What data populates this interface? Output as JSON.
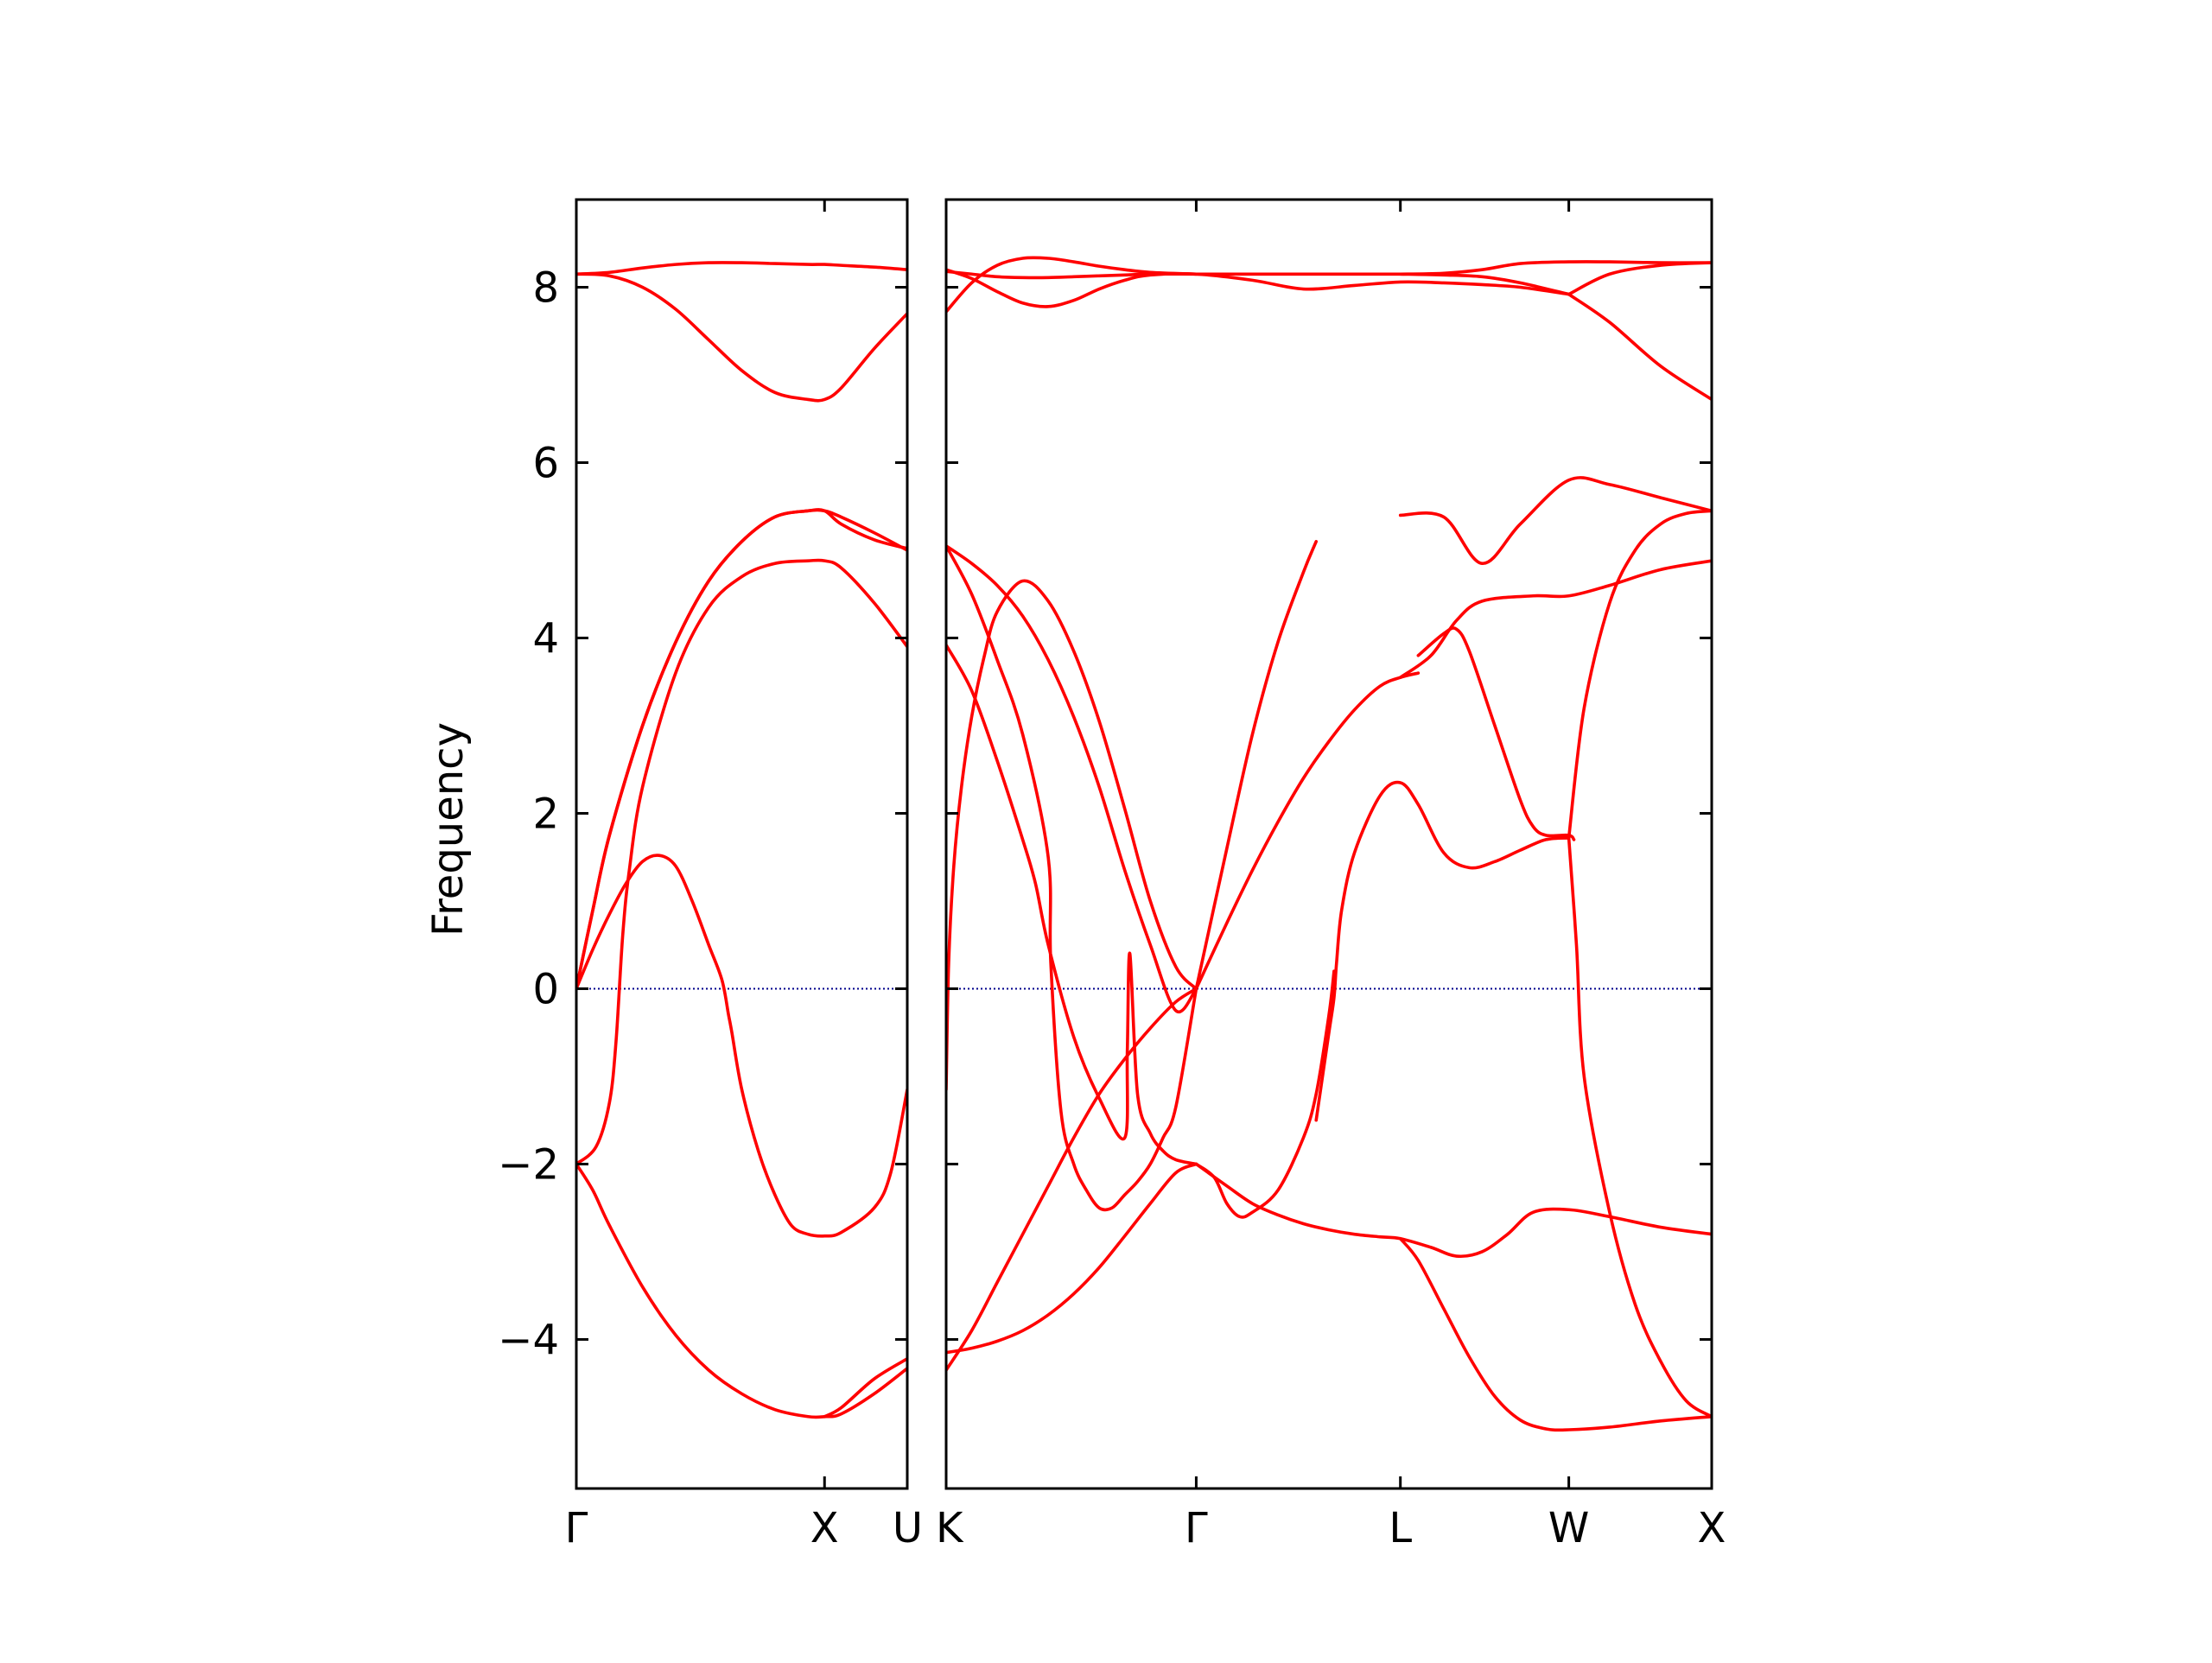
{
  "chart_data": {
    "type": "line",
    "title": "",
    "ylabel": "Frequency",
    "ylim": [
      -5.7,
      9.0
    ],
    "yticks": [
      -4,
      -2,
      0,
      2,
      4,
      6,
      8
    ],
    "ytick_labels": [
      "−4",
      "−2",
      "0",
      "2",
      "4",
      "6",
      "8"
    ],
    "grid": false,
    "band_color": "#ff0000",
    "zero_line_color": "#00008b",
    "panels": [
      {
        "xlim": [
          0.0,
          1.0
        ],
        "xticks": [
          0.0,
          0.75,
          1.0
        ],
        "xtick_labels": [
          "Γ",
          "X",
          "U"
        ],
        "series": [
          {
            "x": [
              0,
              0.1,
              0.2,
              0.3,
              0.4,
              0.5,
              0.6,
              0.7,
              0.75,
              0.8,
              0.9,
              1.0
            ],
            "y": [
              8.15,
              8.17,
              8.22,
              8.26,
              8.28,
              8.28,
              8.27,
              8.26,
              8.26,
              8.25,
              8.23,
              8.2
            ]
          },
          {
            "x": [
              0,
              0.1,
              0.2,
              0.3,
              0.4,
              0.5,
              0.6,
              0.7,
              0.75,
              0.8,
              0.9,
              1.0
            ],
            "y": [
              8.15,
              8.13,
              8.0,
              7.75,
              7.4,
              7.05,
              6.8,
              6.72,
              6.72,
              6.85,
              7.3,
              7.7
            ]
          },
          {
            "x": [
              0,
              0.05,
              0.1,
              0.2,
              0.3,
              0.4,
              0.5,
              0.6,
              0.7,
              0.75,
              0.8,
              0.9,
              1.0
            ],
            "y": [
              0,
              0.9,
              1.75,
              3.0,
              3.95,
              4.65,
              5.1,
              5.38,
              5.45,
              5.45,
              5.38,
              5.2,
              5.0
            ]
          },
          {
            "x": [
              0,
              0.05,
              0.1,
              0.2,
              0.3,
              0.4,
              0.5,
              0.6,
              0.7,
              0.75,
              0.8,
              0.9,
              1.0
            ],
            "y": [
              0,
              0.9,
              1.75,
              3.0,
              3.95,
              4.65,
              5.1,
              5.38,
              5.45,
              5.45,
              5.3,
              5.12,
              5.02
            ]
          },
          {
            "x": [
              0,
              0.06,
              0.1,
              0.12,
              0.14,
              0.16,
              0.2,
              0.3,
              0.4,
              0.5,
              0.6,
              0.7,
              0.75,
              0.8,
              0.9,
              1.0
            ],
            "y": [
              -2.0,
              -1.8,
              -1.3,
              -0.6,
              0.6,
              1.35,
              2.3,
              3.6,
              4.35,
              4.7,
              4.85,
              4.88,
              4.88,
              4.8,
              4.4,
              3.9
            ]
          },
          {
            "x": [
              0,
              0.05,
              0.1,
              0.15,
              0.2,
              0.25,
              0.3,
              0.35,
              0.4,
              0.44,
              0.46,
              0.47,
              0.5,
              0.55,
              0.6,
              0.65,
              0.7,
              0.75,
              0.8,
              0.9,
              0.95,
              1.0
            ],
            "y": [
              0,
              0.45,
              0.85,
              1.2,
              1.45,
              1.52,
              1.4,
              1.0,
              0.5,
              0.1,
              -0.3,
              -0.5,
              -1.15,
              -1.85,
              -2.35,
              -2.7,
              -2.8,
              -2.82,
              -2.78,
              -2.5,
              -2.1,
              -1.15
            ]
          },
          {
            "x": [
              0,
              0.05,
              0.1,
              0.2,
              0.3,
              0.4,
              0.5,
              0.6,
              0.7,
              0.75,
              0.8,
              0.9,
              1.0
            ],
            "y": [
              -2.0,
              -2.3,
              -2.7,
              -3.4,
              -3.95,
              -4.35,
              -4.62,
              -4.8,
              -4.88,
              -4.88,
              -4.85,
              -4.62,
              -4.33
            ]
          },
          {
            "x": [
              0.75,
              0.8,
              0.9,
              1.0
            ],
            "y": [
              -4.88,
              -4.78,
              -4.45,
              -4.22
            ]
          }
        ]
      },
      {
        "xlim": [
          0.0,
          3.0
        ],
        "xticks": [
          0.0,
          0.98,
          1.78,
          2.44,
          3.0
        ],
        "xtick_labels": [
          "K",
          "Γ",
          "L",
          "W",
          "X"
        ],
        "series": [
          {
            "x": [
              0,
              0.1,
              0.2,
              0.3,
              0.4,
              0.5,
              0.6,
              0.7,
              0.8,
              0.98,
              1.2,
              1.4,
              1.6,
              1.78,
              1.95,
              2.1,
              2.25,
              2.44,
              2.6,
              2.8,
              3.0
            ],
            "y": [
              8.18,
              8.15,
              8.12,
              8.11,
              8.11,
              8.12,
              8.13,
              8.14,
              8.15,
              8.15,
              8.15,
              8.15,
              8.15,
              8.15,
              8.16,
              8.2,
              8.27,
              8.29,
              8.29,
              8.28,
              8.28
            ]
          },
          {
            "x": [
              0,
              0.1,
              0.2,
              0.3,
              0.4,
              0.5,
              0.6,
              0.7,
              0.8,
              0.98
            ],
            "y": [
              7.72,
              8.05,
              8.25,
              8.33,
              8.33,
              8.29,
              8.24,
              8.2,
              8.17,
              8.15
            ]
          },
          {
            "x": [
              0,
              0.1,
              0.2,
              0.3,
              0.4,
              0.5,
              0.6,
              0.7,
              0.8,
              0.98,
              1.2,
              1.4,
              1.6,
              1.78,
              1.95,
              2.1,
              2.25,
              2.44
            ],
            "y": [
              8.2,
              8.1,
              7.95,
              7.82,
              7.78,
              7.85,
              7.98,
              8.08,
              8.14,
              8.15,
              8.08,
              7.98,
              8.02,
              8.06,
              8.05,
              8.03,
              8.0,
              7.92
            ]
          },
          {
            "x": [
              1.78,
              1.95,
              2.1,
              2.25,
              2.44
            ],
            "y": [
              8.15,
              8.14,
              8.12,
              8.05,
              7.92
            ]
          },
          {
            "x": [
              2.44,
              2.6,
              2.8,
              3.0
            ],
            "y": [
              7.92,
              7.6,
              7.1,
              6.72
            ]
          },
          {
            "x": [
              2.44,
              2.6,
              2.8,
              3.0
            ],
            "y": [
              7.92,
              8.15,
              8.25,
              8.28
            ]
          },
          {
            "x": [
              1.78,
              1.95,
              2.1,
              2.25,
              2.44,
              2.6,
              2.8,
              3.0
            ],
            "y": [
              5.4,
              5.38,
              4.85,
              5.3,
              5.8,
              5.75,
              5.6,
              5.45
            ]
          },
          {
            "x": [
              1.78,
              1.9,
              2.0,
              2.1,
              2.3,
              2.44,
              2.6,
              2.8,
              3.0
            ],
            "y": [
              3.55,
              3.8,
              4.2,
              4.42,
              4.48,
              4.48,
              4.6,
              4.78,
              4.88
            ]
          },
          {
            "x": [
              0.98,
              1.1,
              1.2,
              1.3,
              1.4,
              1.5,
              1.6,
              1.7,
              1.78,
              1.85
            ],
            "y": [
              0,
              0.75,
              1.35,
              1.9,
              2.4,
              2.82,
              3.18,
              3.45,
              3.55,
              3.6
            ]
          },
          {
            "x": [
              1.85,
              1.95,
              2.0,
              2.05,
              2.15,
              2.25,
              2.3,
              2.35,
              2.44,
              2.46
            ],
            "y": [
              3.8,
              4.05,
              4.1,
              3.85,
              3.0,
              2.15,
              1.85,
              1.75,
              1.75,
              1.7
            ]
          },
          {
            "x": [
              1.45,
              1.5,
              1.52,
              1.53,
              1.55,
              1.6,
              1.7,
              1.78,
              1.85,
              1.95,
              2.05,
              2.15,
              2.25,
              2.35,
              2.44
            ],
            "y": [
              -1.5,
              -0.5,
              -0.1,
              0.3,
              0.9,
              1.55,
              2.2,
              2.35,
              2.1,
              1.55,
              1.38,
              1.45,
              1.58,
              1.7,
              1.72
            ]
          },
          {
            "x": [
              0.98,
              1.1,
              1.2,
              1.3,
              1.4,
              1.45
            ],
            "y": [
              0,
              1.6,
              2.9,
              3.95,
              4.75,
              5.1
            ]
          },
          {
            "x": [
              2.44,
              2.47,
              2.5,
              2.6,
              2.7,
              2.8,
              2.9,
              3.0
            ],
            "y": [
              1.72,
              0.5,
              -1.0,
              -2.55,
              -3.6,
              -4.25,
              -4.7,
              -4.88
            ]
          },
          {
            "x": [
              2.44,
              2.5,
              2.6,
              2.7,
              2.8,
              2.9,
              3.0
            ],
            "y": [
              1.72,
              3.2,
              4.4,
              5.0,
              5.3,
              5.42,
              5.45
            ]
          },
          {
            "x": [
              0,
              0.01,
              0.03,
              0.06,
              0.1,
              0.15,
              0.2,
              0.3,
              0.4,
              0.5,
              0.6,
              0.7,
              0.8,
              0.9,
              0.98
            ],
            "y": [
              -1.15,
              0.3,
              1.4,
              2.3,
              3.1,
              3.8,
              4.3,
              4.65,
              4.42,
              3.85,
              3.05,
              2.05,
              1.0,
              0.25,
              0
            ]
          },
          {
            "x": [
              0,
              0.1,
              0.2,
              0.3,
              0.4,
              0.5,
              0.6,
              0.7,
              0.8,
              0.9,
              0.98
            ],
            "y": [
              5.05,
              4.85,
              4.6,
              4.25,
              3.75,
              3.1,
              2.3,
              1.35,
              0.5,
              -0.25,
              0
            ]
          },
          {
            "x": [
              0,
              0.1,
              0.2,
              0.3,
              0.4,
              0.41,
              0.45,
              0.5,
              0.55,
              0.6,
              0.65,
              0.7,
              0.75,
              0.8,
              0.85,
              0.9,
              0.98
            ],
            "y": [
              5.05,
              4.5,
              3.75,
              2.9,
              1.5,
              0.3,
              -1.4,
              -2.0,
              -2.3,
              -2.5,
              -2.5,
              -2.35,
              -2.2,
              -2.0,
              -1.7,
              -1.35,
              0
            ]
          },
          {
            "x": [
              0,
              0.1,
              0.2,
              0.3,
              0.35,
              0.4,
              0.5,
              0.6,
              0.7,
              0.71,
              0.72,
              0.75,
              0.8,
              0.85,
              0.9,
              0.98
            ],
            "y": [
              3.92,
              3.4,
              2.6,
              1.7,
              1.2,
              0.5,
              -0.55,
              -1.25,
              -1.7,
              -0.7,
              0.4,
              -1.2,
              -1.65,
              -1.85,
              -1.95,
              -2.0
            ]
          },
          {
            "x": [
              0,
              0.1,
              0.2,
              0.3,
              0.4,
              0.5,
              0.6,
              0.7,
              0.8,
              0.9,
              0.98
            ],
            "y": [
              -4.15,
              -4.1,
              -4.02,
              -3.9,
              -3.72,
              -3.48,
              -3.18,
              -2.82,
              -2.45,
              -2.1,
              -2.0
            ]
          },
          {
            "x": [
              0,
              0.1,
              0.2,
              0.3,
              0.4,
              0.5,
              0.6,
              0.7,
              0.8,
              0.9,
              0.98
            ],
            "y": [
              -4.35,
              -3.9,
              -3.35,
              -2.8,
              -2.25,
              -1.7,
              -1.2,
              -0.8,
              -0.45,
              -0.15,
              0
            ]
          },
          {
            "x": [
              0.98,
              1.05,
              1.1,
              1.15,
              1.2,
              1.3,
              1.4,
              1.45,
              1.5,
              1.52
            ],
            "y": [
              -2.0,
              -2.15,
              -2.45,
              -2.6,
              -2.55,
              -2.3,
              -1.7,
              -1.2,
              -0.3,
              0.2
            ]
          },
          {
            "x": [
              0.98,
              1.1,
              1.2,
              1.3,
              1.4,
              1.5,
              1.6,
              1.7,
              1.78,
              1.9,
              2.0,
              2.1,
              2.2,
              2.3,
              2.44,
              2.6,
              2.8,
              3.0
            ],
            "y": [
              -2.0,
              -2.25,
              -2.45,
              -2.58,
              -2.68,
              -2.75,
              -2.8,
              -2.83,
              -2.85,
              -2.95,
              -3.05,
              -3.0,
              -2.8,
              -2.55,
              -2.52,
              -2.6,
              -2.72,
              -2.8
            ]
          },
          {
            "x": [
              1.78,
              1.85,
              1.95,
              2.05,
              2.15,
              2.25,
              2.35,
              2.44,
              2.6,
              2.8,
              3.0
            ],
            "y": [
              -2.85,
              -3.1,
              -3.65,
              -4.2,
              -4.65,
              -4.92,
              -5.02,
              -5.03,
              -5.0,
              -4.93,
              -4.88
            ]
          }
        ]
      }
    ]
  }
}
